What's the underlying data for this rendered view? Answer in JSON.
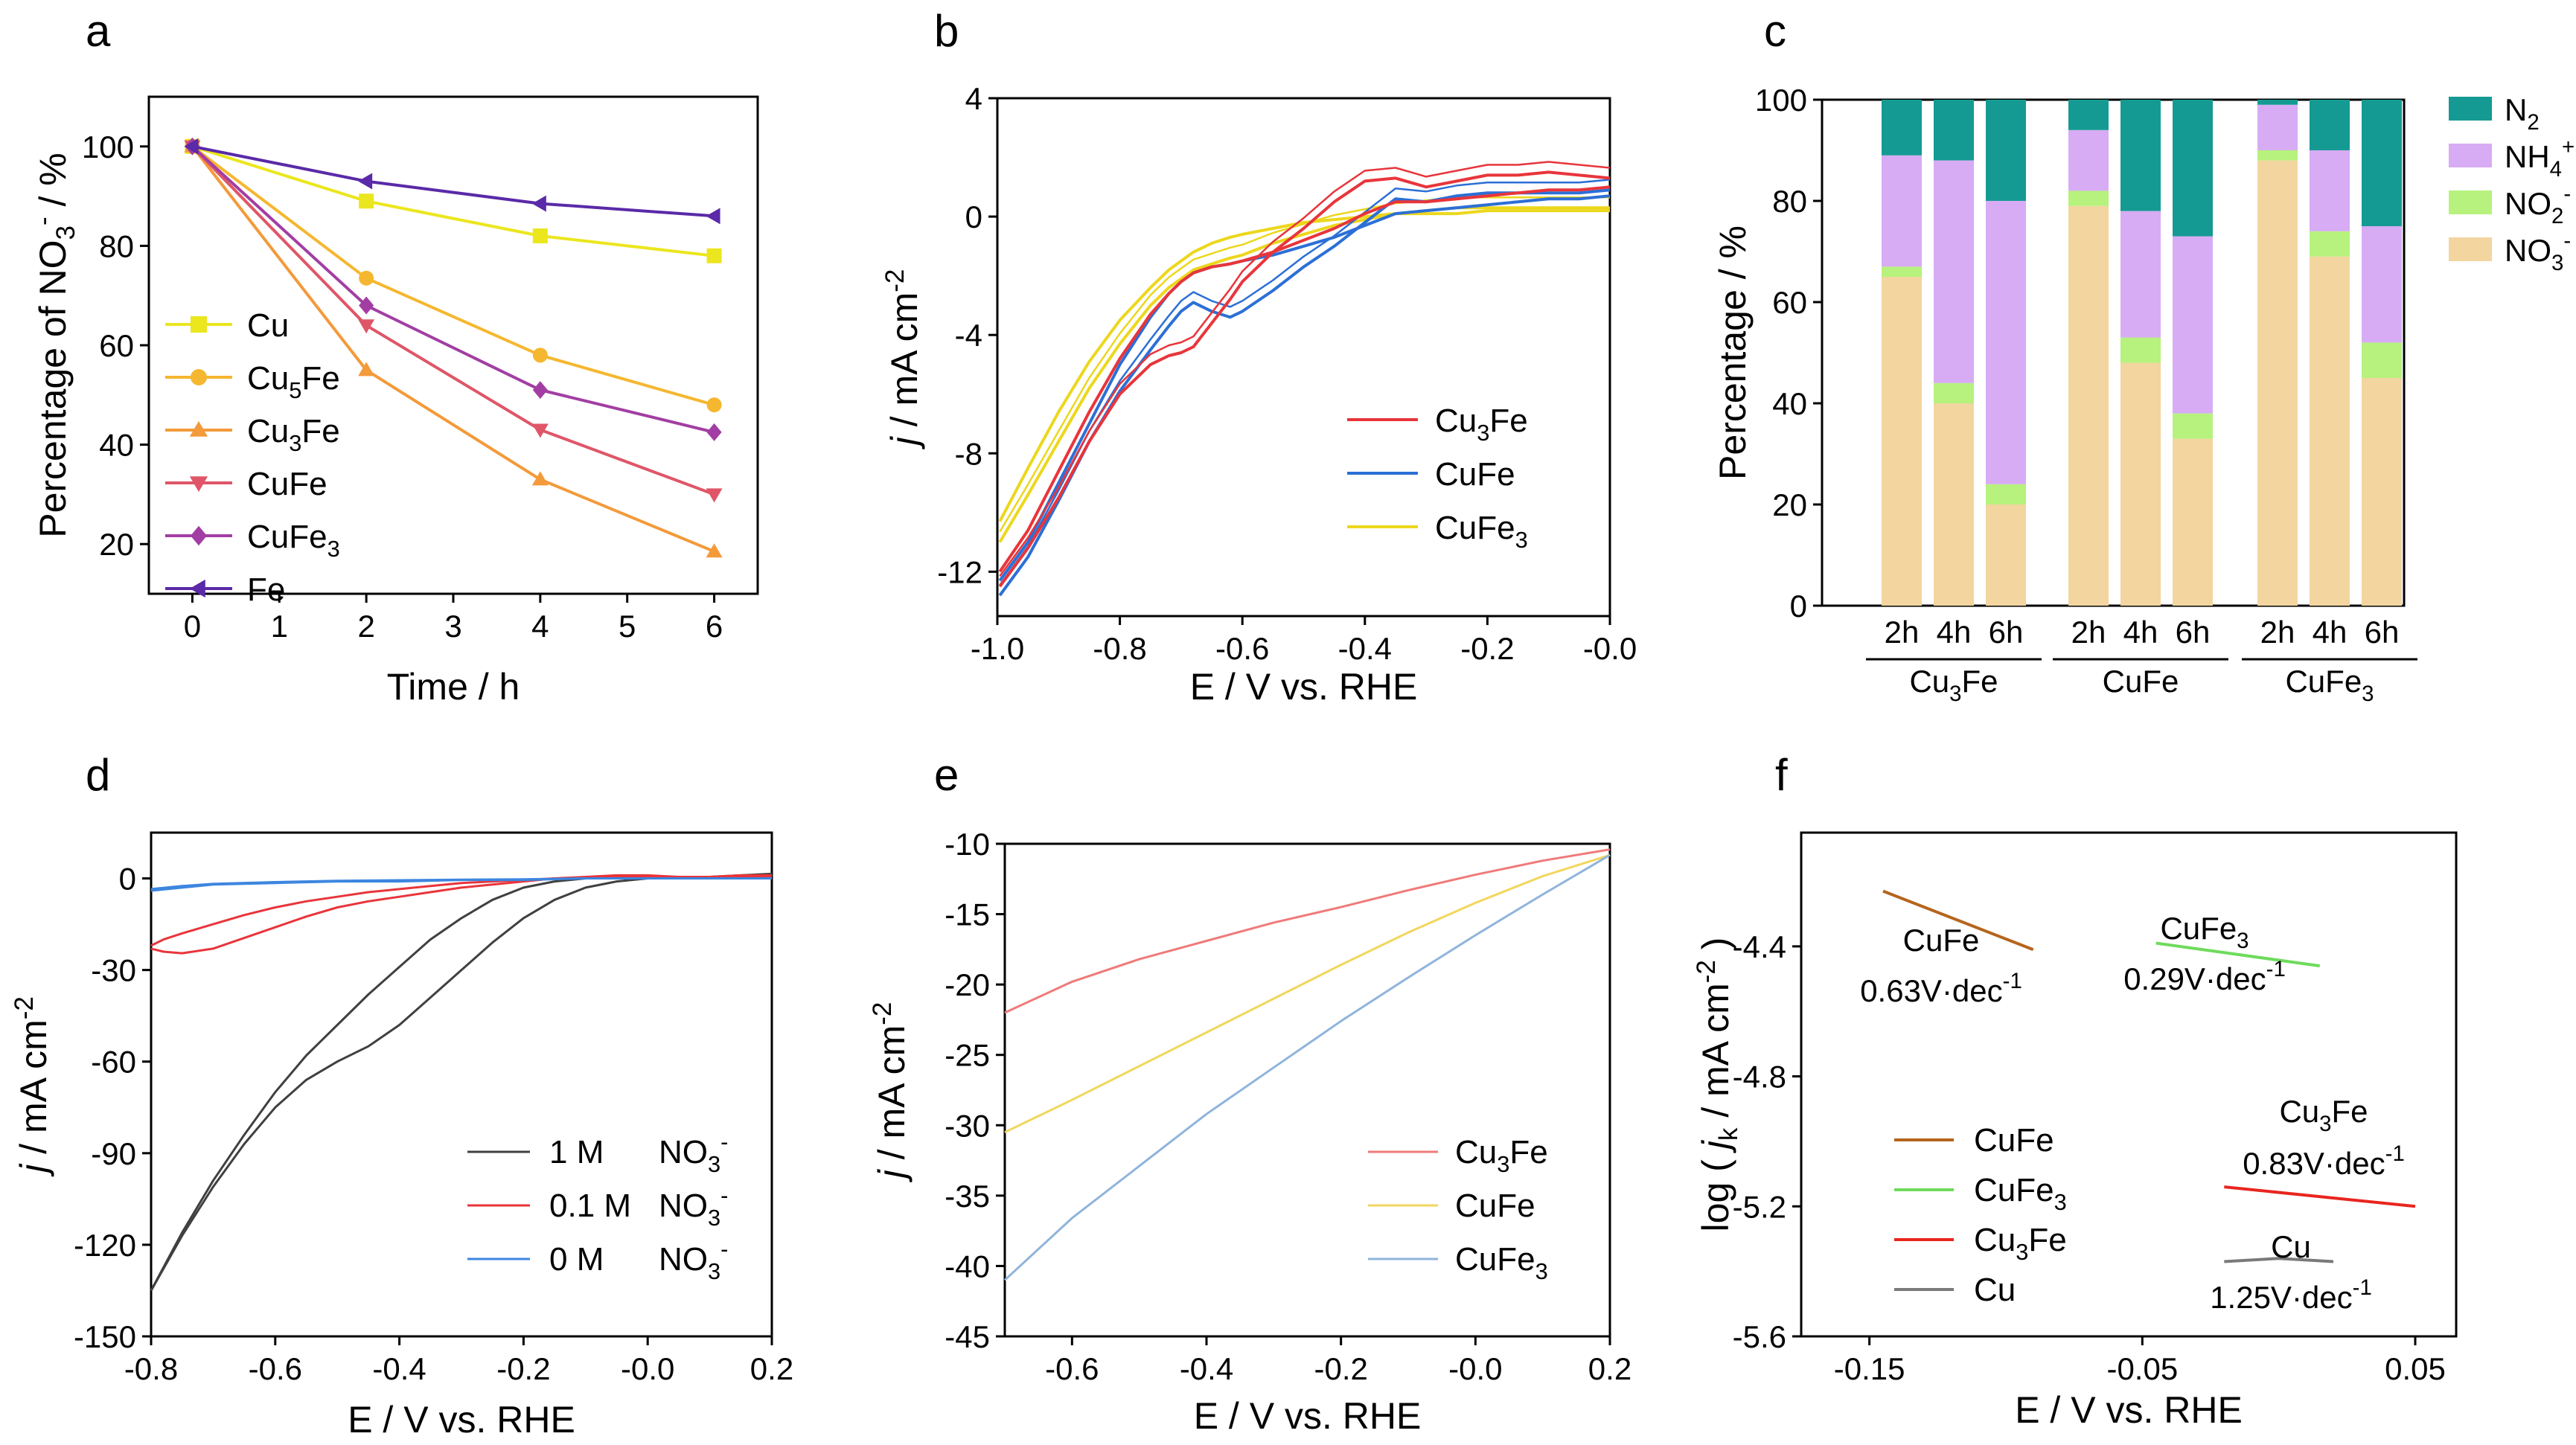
{
  "figure": {
    "panel_labels": [
      "a",
      "b",
      "c",
      "d",
      "e",
      "f"
    ]
  },
  "chart_data": [
    {
      "panel": "a",
      "type": "line",
      "xlabel": "Time / h",
      "ylabel_parts": {
        "a": "Percentage of NO",
        "sub": "3",
        "sup": "-",
        "b": " / %"
      },
      "xlim": [
        -0.5,
        6.5
      ],
      "ylim": [
        10,
        110
      ],
      "xticks": [
        0,
        1,
        2,
        3,
        4,
        5,
        6
      ],
      "yticks": [
        20,
        40,
        60,
        80,
        100
      ],
      "x": [
        0,
        2,
        4,
        6
      ],
      "series": [
        {
          "name": "Cu",
          "name_parts": [
            "Cu"
          ],
          "color": "#ebe61e",
          "marker": "square",
          "values": [
            100,
            89,
            82,
            78
          ]
        },
        {
          "name": "Cu5Fe",
          "name_parts": [
            "Cu",
            "5",
            "Fe"
          ],
          "color": "#f5b730",
          "marker": "circle",
          "values": [
            100,
            73.5,
            58,
            48
          ]
        },
        {
          "name": "Cu3Fe",
          "name_parts": [
            "Cu",
            "3",
            "Fe"
          ],
          "color": "#f39a3a",
          "marker": "triangle-up",
          "values": [
            100,
            55,
            33,
            18.5
          ]
        },
        {
          "name": "CuFe",
          "name_parts": [
            "CuFe"
          ],
          "color": "#df5668",
          "marker": "triangle-down",
          "values": [
            100,
            64,
            43,
            30
          ]
        },
        {
          "name": "CuFe3",
          "name_parts": [
            "CuFe",
            "3",
            ""
          ],
          "color": "#a23ea3",
          "marker": "diamond",
          "values": [
            100,
            68,
            51,
            42.5
          ]
        },
        {
          "name": "Fe",
          "name_parts": [
            "Fe"
          ],
          "color": "#5a2aa8",
          "marker": "triangle-left",
          "values": [
            100,
            93,
            88.5,
            86
          ]
        }
      ]
    },
    {
      "panel": "b",
      "type": "line",
      "xlabel": "E / V vs. RHE",
      "ylabel_parts": {
        "a": "j",
        "b": " / mA cm",
        "sup": "-2"
      },
      "xlim": [
        -1.0,
        0.0
      ],
      "ylim": [
        -13.5,
        4
      ],
      "xticks": [
        -1.0,
        -0.8,
        -0.6,
        -0.4,
        -0.2,
        0.0
      ],
      "xtick_labels": [
        "-1.0",
        "-0.8",
        "-0.6",
        "-0.4",
        "-0.2",
        "-0.0"
      ],
      "yticks": [
        -12,
        -8,
        -4,
        0,
        4
      ],
      "series": [
        {
          "name": "Cu3Fe",
          "name_parts": [
            "Cu",
            "3",
            "Fe"
          ],
          "color": "#e8353b",
          "x": [
            -0.996,
            -0.95,
            -0.9,
            -0.85,
            -0.8,
            -0.75,
            -0.72,
            -0.7,
            -0.68,
            -0.65,
            -0.62,
            -0.6,
            -0.55,
            -0.5,
            -0.45,
            -0.4,
            -0.35,
            -0.3,
            -0.25,
            -0.2,
            -0.15,
            -0.1,
            -0.05,
            0.0
          ],
          "y": [
            -12.5,
            -11.2,
            -9.5,
            -7.6,
            -6.0,
            -5.0,
            -4.7,
            -4.6,
            -4.4,
            -3.6,
            -2.8,
            -2.2,
            -1.2,
            -0.4,
            0.5,
            1.2,
            1.3,
            1.0,
            1.2,
            1.4,
            1.4,
            1.5,
            1.4,
            1.3
          ],
          "y_forward": [
            -12.0,
            -10.6,
            -8.6,
            -6.6,
            -4.8,
            -3.3,
            -2.6,
            -2.2,
            -1.9,
            -1.7,
            -1.6,
            -1.5,
            -1.2,
            -0.8,
            -0.4,
            0.1,
            0.5,
            0.5,
            0.6,
            0.7,
            0.8,
            0.9,
            0.9,
            1.0
          ]
        },
        {
          "name": "CuFe",
          "name_parts": [
            "CuFe"
          ],
          "color": "#2c6fd6",
          "x": [
            -0.996,
            -0.95,
            -0.9,
            -0.85,
            -0.8,
            -0.75,
            -0.72,
            -0.7,
            -0.68,
            -0.65,
            -0.62,
            -0.6,
            -0.55,
            -0.5,
            -0.45,
            -0.4,
            -0.35,
            -0.3,
            -0.25,
            -0.2,
            -0.15,
            -0.1,
            -0.05,
            0.0
          ],
          "y": [
            -12.8,
            -11.5,
            -9.6,
            -7.6,
            -5.9,
            -4.5,
            -3.7,
            -3.2,
            -2.9,
            -3.2,
            -3.4,
            -3.2,
            -2.5,
            -1.7,
            -1.0,
            -0.2,
            0.6,
            0.5,
            0.7,
            0.8,
            0.8,
            0.8,
            0.8,
            0.9
          ],
          "y_forward": [
            -12.3,
            -11.0,
            -9.0,
            -7.0,
            -5.0,
            -3.4,
            -2.6,
            -2.2,
            -1.9,
            -1.7,
            -1.6,
            -1.5,
            -1.3,
            -1.0,
            -0.7,
            -0.3,
            0.1,
            0.2,
            0.3,
            0.4,
            0.5,
            0.6,
            0.6,
            0.7
          ]
        },
        {
          "name": "CuFe3",
          "name_parts": [
            "CuFe",
            "3",
            ""
          ],
          "color": "#ecd71d",
          "x": [
            -0.996,
            -0.95,
            -0.9,
            -0.85,
            -0.8,
            -0.75,
            -0.72,
            -0.7,
            -0.68,
            -0.65,
            -0.62,
            -0.6,
            -0.55,
            -0.5,
            -0.45,
            -0.4,
            -0.35,
            -0.3,
            -0.25,
            -0.2,
            -0.15,
            -0.1,
            -0.05,
            0.0
          ],
          "y": [
            -11.0,
            -9.4,
            -7.6,
            -5.8,
            -4.3,
            -3.0,
            -2.4,
            -2.1,
            -1.8,
            -1.6,
            -1.4,
            -1.3,
            -0.9,
            -0.6,
            -0.3,
            -0.1,
            0.1,
            0.2,
            0.3,
            0.3,
            0.3,
            0.3,
            0.3,
            0.3
          ],
          "y_forward": [
            -10.3,
            -8.5,
            -6.6,
            -4.9,
            -3.5,
            -2.4,
            -1.8,
            -1.5,
            -1.2,
            -0.9,
            -0.7,
            -0.6,
            -0.4,
            -0.2,
            -0.1,
            0.0,
            0.1,
            0.1,
            0.1,
            0.2,
            0.2,
            0.2,
            0.2,
            0.2
          ]
        }
      ]
    },
    {
      "panel": "c",
      "type": "bar",
      "ylabel": "Percentage / %",
      "ylim": [
        0,
        100
      ],
      "yticks": [
        0,
        20,
        40,
        60,
        80,
        100
      ],
      "groups": [
        {
          "name": "Cu3Fe",
          "name_parts": [
            "Cu",
            "3",
            "Fe"
          ]
        },
        {
          "name": "CuFe",
          "name_parts": [
            "CuFe"
          ]
        },
        {
          "name": "CuFe3",
          "name_parts": [
            "CuFe",
            "3",
            ""
          ]
        }
      ],
      "categories": [
        "2h",
        "4h",
        "6h",
        "2h",
        "4h",
        "6h",
        "2h",
        "4h",
        "6h"
      ],
      "series": [
        {
          "name": "NO3-",
          "label": "NO",
          "sub": "3",
          "sup": "-",
          "color": "#f3d5a0",
          "values": [
            65,
            40,
            20,
            79,
            48,
            33,
            88,
            69,
            45
          ]
        },
        {
          "name": "NO2-",
          "label": "NO",
          "sub": "2",
          "sup": "-",
          "color": "#b6f27d",
          "values": [
            2,
            4,
            4,
            3,
            5,
            5,
            2,
            5,
            7
          ]
        },
        {
          "name": "NH4+",
          "label": "NH",
          "sub": "4",
          "sup": "+",
          "color": "#d7acf4",
          "values": [
            22,
            44,
            56,
            12,
            25,
            35,
            9,
            16,
            23
          ]
        },
        {
          "name": "N2",
          "label": "N",
          "sub": "2",
          "sup": "",
          "color": "#159a93",
          "values": [
            11,
            12,
            20,
            6,
            22,
            27,
            1,
            10,
            25
          ]
        }
      ],
      "legend_order": [
        "N2",
        "NH4+",
        "NO2-",
        "NO3-"
      ]
    },
    {
      "panel": "d",
      "type": "line",
      "xlabel": "E / V vs. RHE",
      "ylabel_parts": {
        "a": "j",
        "b": " / mA cm",
        "sup": "-2"
      },
      "xlim": [
        -0.8,
        0.2
      ],
      "ylim": [
        -150,
        15
      ],
      "xticks": [
        -0.8,
        -0.6,
        -0.4,
        -0.2,
        0.0,
        0.2
      ],
      "xtick_labels": [
        "-0.8",
        "-0.6",
        "-0.4",
        "-0.2",
        "-0.0",
        "0.2"
      ],
      "yticks": [
        -150,
        -120,
        -90,
        -60,
        -30,
        0
      ],
      "series": [
        {
          "name": "1 M",
          "suffix": "NO",
          "sub": "3",
          "sup": "-",
          "color": "#404040",
          "x": [
            -0.8,
            -0.75,
            -0.7,
            -0.65,
            -0.6,
            -0.55,
            -0.5,
            -0.45,
            -0.4,
            -0.35,
            -0.3,
            -0.25,
            -0.2,
            -0.15,
            -0.1,
            -0.05,
            0.0,
            0.05,
            0.1,
            0.15,
            0.2
          ],
          "y": [
            -135,
            -117,
            -101,
            -87,
            -75,
            -66,
            -60,
            -55,
            -48,
            -39,
            -30,
            -21,
            -13,
            -7,
            -3,
            -1,
            0,
            0,
            0,
            0.5,
            1
          ],
          "y_forward": [
            -135,
            -116,
            -99,
            -84,
            -70,
            -58,
            -48,
            -38,
            -29,
            -20,
            -13,
            -7,
            -3,
            -1,
            0,
            0,
            0.5,
            0.5,
            0.5,
            1,
            1.5
          ]
        },
        {
          "name": "0.1 M",
          "suffix": "NO",
          "sub": "3",
          "sup": "-",
          "color": "#e8353b",
          "x": [
            -0.8,
            -0.78,
            -0.75,
            -0.7,
            -0.65,
            -0.6,
            -0.55,
            -0.5,
            -0.45,
            -0.4,
            -0.35,
            -0.3,
            -0.25,
            -0.2,
            -0.15,
            -0.1,
            -0.05,
            0.0,
            0.05,
            0.1,
            0.15,
            0.2
          ],
          "y": [
            -23,
            -24,
            -24.5,
            -23,
            -19.5,
            -16,
            -12.5,
            -9.5,
            -7.5,
            -6,
            -4.5,
            -3,
            -2,
            -1,
            0,
            0.5,
            1,
            1,
            0.5,
            0.5,
            1,
            1
          ],
          "y_forward": [
            -22,
            -20,
            -18,
            -15,
            -12,
            -9.5,
            -7.5,
            -6,
            -4.5,
            -3.5,
            -2.5,
            -1.5,
            -1,
            -0.5,
            0,
            0,
            0.5,
            0.5,
            0.5,
            0.5,
            0.5,
            0.5
          ]
        },
        {
          "name": "0 M",
          "suffix": "NO",
          "sub": "3",
          "sup": "-",
          "color": "#3d86e0",
          "x": [
            -0.8,
            -0.75,
            -0.7,
            -0.6,
            -0.5,
            -0.4,
            -0.3,
            -0.2,
            -0.1,
            0.0,
            0.1,
            0.2
          ],
          "y": [
            -4,
            -3,
            -2,
            -1.5,
            -1,
            -1,
            -0.5,
            -0.5,
            0,
            0,
            0,
            0
          ],
          "y_forward": [
            -3.5,
            -2.5,
            -1.8,
            -1.2,
            -0.8,
            -0.6,
            -0.4,
            -0.3,
            0,
            0,
            0,
            0
          ]
        }
      ]
    },
    {
      "panel": "e",
      "type": "line",
      "xlabel": "E / V vs. RHE",
      "ylabel_parts": {
        "a": "j",
        "b": " / mA cm",
        "sup": "-2"
      },
      "xlim": [
        -0.7,
        0.2
      ],
      "ylim": [
        -45,
        -10
      ],
      "xticks": [
        -0.6,
        -0.4,
        -0.2,
        0.0,
        0.2
      ],
      "xtick_labels": [
        "-0.6",
        "-0.4",
        "-0.2",
        "-0.0",
        "0.2"
      ],
      "yticks": [
        -45,
        -40,
        -35,
        -30,
        -25,
        -20,
        -15,
        -10
      ],
      "series": [
        {
          "name": "Cu3Fe",
          "name_parts": [
            "Cu",
            "3",
            "Fe"
          ],
          "color": "#f07a7a",
          "x": [
            -0.7,
            -0.6,
            -0.5,
            -0.4,
            -0.3,
            -0.2,
            -0.1,
            0.0,
            0.1,
            0.2
          ],
          "y": [
            -22,
            -19.8,
            -18.2,
            -16.9,
            -15.6,
            -14.5,
            -13.3,
            -12.2,
            -11.2,
            -10.4
          ]
        },
        {
          "name": "CuFe",
          "name_parts": [
            "CuFe"
          ],
          "color": "#f2d65c",
          "x": [
            -0.7,
            -0.6,
            -0.5,
            -0.4,
            -0.3,
            -0.2,
            -0.1,
            0.0,
            0.1,
            0.2
          ],
          "y": [
            -30.5,
            -28.2,
            -25.8,
            -23.4,
            -21.0,
            -18.6,
            -16.3,
            -14.2,
            -12.3,
            -10.8
          ]
        },
        {
          "name": "CuFe3",
          "name_parts": [
            "CuFe",
            "3",
            ""
          ],
          "color": "#8fb4dc",
          "x": [
            -0.7,
            -0.6,
            -0.5,
            -0.4,
            -0.3,
            -0.2,
            -0.1,
            0.0,
            0.1,
            0.2
          ],
          "y": [
            -41,
            -36.6,
            -32.9,
            -29.2,
            -25.9,
            -22.6,
            -19.5,
            -16.5,
            -13.6,
            -10.8
          ]
        }
      ]
    },
    {
      "panel": "f",
      "type": "line",
      "xlabel": "E / V vs. RHE",
      "ylabel_parts": {
        "a": "log ( ",
        "b": "j",
        "sub": "k",
        "c": " / mA cm",
        "sup": "-2",
        "d": " )"
      },
      "xlim": [
        -0.175,
        0.065
      ],
      "ylim": [
        -5.6,
        -4.05
      ],
      "xticks": [
        -0.15,
        -0.05,
        0.05
      ],
      "xtick_labels": [
        "-0.15",
        "-0.05",
        "0.05"
      ],
      "yticks": [
        -5.6,
        -5.2,
        -4.8,
        -4.4
      ],
      "ytick_labels": [
        "-5.6",
        "-5.2",
        "-4.8",
        "-4.4"
      ],
      "series": [
        {
          "name": "CuFe",
          "name_parts": [
            "CuFe"
          ],
          "color": "#b5651d",
          "x": [
            -0.145,
            -0.09
          ],
          "y": [
            -4.23,
            -4.41
          ]
        },
        {
          "name": "CuFe3",
          "name_parts": [
            "CuFe",
            "3",
            ""
          ],
          "color": "#6edb5c",
          "x": [
            -0.045,
            0.015
          ],
          "y": [
            -4.39,
            -4.46
          ]
        },
        {
          "name": "Cu3Fe",
          "name_parts": [
            "Cu",
            "3",
            "Fe"
          ],
          "color": "#e8261f",
          "x": [
            -0.02,
            0.05
          ],
          "y": [
            -5.14,
            -5.2
          ]
        },
        {
          "name": "Cu",
          "name_parts": [
            "Cu"
          ],
          "color": "#7a7a7a",
          "x": [
            -0.02,
            0.0,
            0.02
          ],
          "y": [
            -5.37,
            -5.36,
            -5.37
          ]
        }
      ],
      "annotations": [
        {
          "text": "CuFe",
          "sub": "",
          "tail": ""
        },
        {
          "text": "0.63V·dec",
          "sup": "-1"
        },
        {
          "text": "CuFe",
          "sub": "3",
          "tail": ""
        },
        {
          "text": "0.29V·dec",
          "sup": "-1"
        },
        {
          "text": "Cu",
          "sub": "3",
          "tail": "Fe"
        },
        {
          "text": "0.83V·dec",
          "sup": "-1"
        },
        {
          "text": "Cu",
          "sub": "",
          "tail": ""
        },
        {
          "text": "1.25V·dec",
          "sup": "-1"
        }
      ]
    }
  ]
}
